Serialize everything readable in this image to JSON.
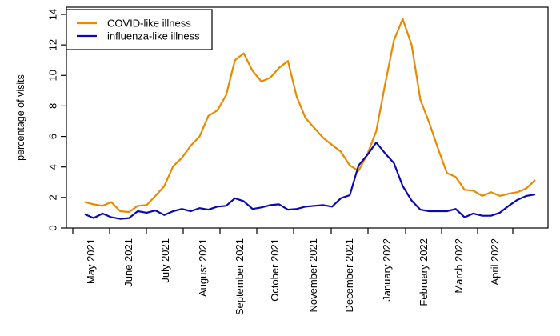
{
  "chart_data": {
    "type": "line",
    "title": "",
    "xlabel": "",
    "ylabel": "percentage of visits",
    "ylim": [
      0,
      14
    ],
    "yticks": [
      0,
      2,
      4,
      6,
      8,
      10,
      12,
      14
    ],
    "grid": false,
    "legend_position": "top-left",
    "x_tick_labels": [
      "May 2021",
      "June 2021",
      "July 2021",
      "August 2021",
      "September 2021",
      "October 2021",
      "November 2021",
      "December 2021",
      "January 2022",
      "February 2022",
      "March 2022",
      "April 2022"
    ],
    "x_weeks_total": 52,
    "series": [
      {
        "name": "COVID-like illness",
        "color": "#E88A00",
        "values": [
          1.7,
          1.55,
          1.45,
          1.7,
          1.1,
          1.05,
          1.45,
          1.5,
          2.1,
          2.75,
          4.05,
          4.6,
          5.4,
          6.0,
          7.35,
          7.7,
          8.7,
          11.0,
          11.45,
          10.3,
          9.6,
          9.85,
          10.5,
          10.95,
          8.6,
          7.2,
          6.55,
          5.9,
          5.45,
          5.0,
          4.1,
          3.75,
          4.85,
          6.35,
          9.4,
          12.3,
          13.7,
          12.0,
          8.4,
          6.9,
          5.2,
          3.6,
          3.35,
          2.5,
          2.45,
          2.1,
          2.35,
          2.1,
          2.25,
          2.35,
          2.6,
          3.15
        ]
      },
      {
        "name": "influenza-like illness",
        "color": "#0A0AAF",
        "values": [
          0.9,
          0.65,
          0.95,
          0.7,
          0.6,
          0.65,
          1.1,
          1.0,
          1.15,
          0.85,
          1.1,
          1.25,
          1.1,
          1.3,
          1.2,
          1.4,
          1.45,
          1.95,
          1.75,
          1.25,
          1.35,
          1.5,
          1.55,
          1.2,
          1.25,
          1.4,
          1.45,
          1.5,
          1.4,
          1.95,
          2.15,
          4.1,
          4.8,
          5.6,
          4.9,
          4.25,
          2.75,
          1.8,
          1.2,
          1.1,
          1.1,
          1.1,
          1.25,
          0.7,
          0.95,
          0.8,
          0.8,
          1.0,
          1.45,
          1.85,
          2.1,
          2.2
        ]
      }
    ]
  }
}
